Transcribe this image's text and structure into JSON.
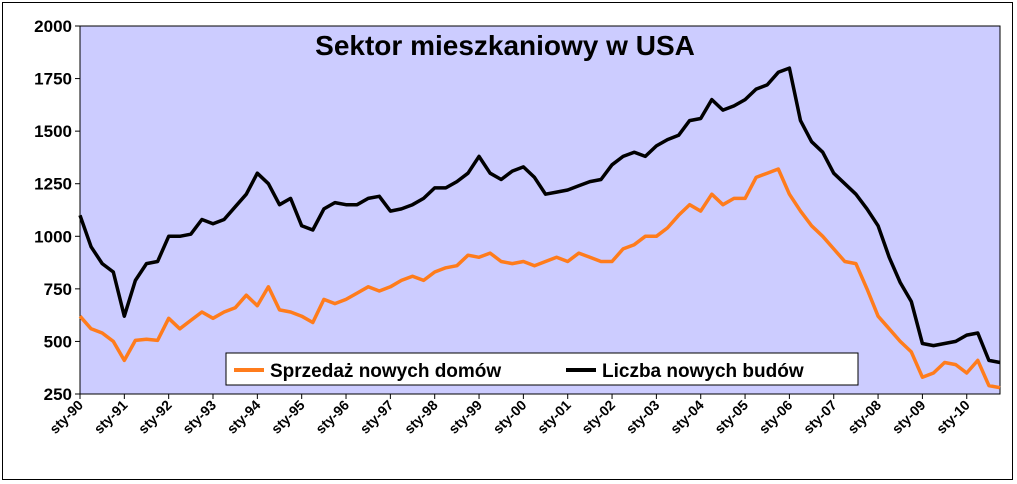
{
  "chart_data": {
    "type": "line",
    "title": "Sektor mieszkaniowy w USA",
    "xlabel": "",
    "ylabel": "",
    "ylim": [
      250,
      2000
    ],
    "y_ticks": [
      250,
      500,
      750,
      1000,
      1250,
      1500,
      1750,
      2000
    ],
    "x_ticks": [
      "sty-90",
      "sty-91",
      "sty-92",
      "sty-93",
      "sty-94",
      "sty-95",
      "sty-96",
      "sty-97",
      "sty-98",
      "sty-99",
      "sty-00",
      "sty-01",
      "sty-02",
      "sty-03",
      "sty-04",
      "sty-05",
      "sty-06",
      "sty-07",
      "sty-08",
      "sty-09",
      "sty-10"
    ],
    "x_start": "1990-01",
    "x_end": "2010-10",
    "legend_position": "bottom-right",
    "plot_background": "#ccccff",
    "series": [
      {
        "name": "Sprzedaż nowych domów",
        "color": "#ff7c1c",
        "values": [
          {
            "x": "1990-01",
            "y": 620
          },
          {
            "x": "1990-04",
            "y": 560
          },
          {
            "x": "1990-07",
            "y": 540
          },
          {
            "x": "1990-10",
            "y": 500
          },
          {
            "x": "1991-01",
            "y": 410
          },
          {
            "x": "1991-04",
            "y": 505
          },
          {
            "x": "1991-07",
            "y": 510
          },
          {
            "x": "1991-10",
            "y": 505
          },
          {
            "x": "1992-01",
            "y": 610
          },
          {
            "x": "1992-04",
            "y": 560
          },
          {
            "x": "1992-07",
            "y": 600
          },
          {
            "x": "1992-10",
            "y": 640
          },
          {
            "x": "1993-01",
            "y": 610
          },
          {
            "x": "1993-04",
            "y": 640
          },
          {
            "x": "1993-07",
            "y": 660
          },
          {
            "x": "1993-10",
            "y": 720
          },
          {
            "x": "1994-01",
            "y": 670
          },
          {
            "x": "1994-04",
            "y": 760
          },
          {
            "x": "1994-07",
            "y": 650
          },
          {
            "x": "1994-10",
            "y": 640
          },
          {
            "x": "1995-01",
            "y": 620
          },
          {
            "x": "1995-04",
            "y": 590
          },
          {
            "x": "1995-07",
            "y": 700
          },
          {
            "x": "1995-10",
            "y": 680
          },
          {
            "x": "1996-01",
            "y": 700
          },
          {
            "x": "1996-04",
            "y": 730
          },
          {
            "x": "1996-07",
            "y": 760
          },
          {
            "x": "1996-10",
            "y": 740
          },
          {
            "x": "1997-01",
            "y": 760
          },
          {
            "x": "1997-04",
            "y": 790
          },
          {
            "x": "1997-07",
            "y": 810
          },
          {
            "x": "1997-10",
            "y": 790
          },
          {
            "x": "1998-01",
            "y": 830
          },
          {
            "x": "1998-04",
            "y": 850
          },
          {
            "x": "1998-07",
            "y": 860
          },
          {
            "x": "1998-10",
            "y": 910
          },
          {
            "x": "1999-01",
            "y": 900
          },
          {
            "x": "1999-04",
            "y": 920
          },
          {
            "x": "1999-07",
            "y": 880
          },
          {
            "x": "1999-10",
            "y": 870
          },
          {
            "x": "2000-01",
            "y": 880
          },
          {
            "x": "2000-04",
            "y": 860
          },
          {
            "x": "2000-07",
            "y": 880
          },
          {
            "x": "2000-10",
            "y": 900
          },
          {
            "x": "2001-01",
            "y": 880
          },
          {
            "x": "2001-04",
            "y": 920
          },
          {
            "x": "2001-07",
            "y": 900
          },
          {
            "x": "2001-10",
            "y": 880
          },
          {
            "x": "2002-01",
            "y": 880
          },
          {
            "x": "2002-04",
            "y": 940
          },
          {
            "x": "2002-07",
            "y": 960
          },
          {
            "x": "2002-10",
            "y": 1000
          },
          {
            "x": "2003-01",
            "y": 1000
          },
          {
            "x": "2003-04",
            "y": 1040
          },
          {
            "x": "2003-07",
            "y": 1100
          },
          {
            "x": "2003-10",
            "y": 1150
          },
          {
            "x": "2004-01",
            "y": 1120
          },
          {
            "x": "2004-04",
            "y": 1200
          },
          {
            "x": "2004-07",
            "y": 1150
          },
          {
            "x": "2004-10",
            "y": 1180
          },
          {
            "x": "2005-01",
            "y": 1180
          },
          {
            "x": "2005-04",
            "y": 1280
          },
          {
            "x": "2005-07",
            "y": 1300
          },
          {
            "x": "2005-10",
            "y": 1320
          },
          {
            "x": "2006-01",
            "y": 1200
          },
          {
            "x": "2006-04",
            "y": 1120
          },
          {
            "x": "2006-07",
            "y": 1050
          },
          {
            "x": "2006-10",
            "y": 1000
          },
          {
            "x": "2007-01",
            "y": 940
          },
          {
            "x": "2007-04",
            "y": 880
          },
          {
            "x": "2007-07",
            "y": 870
          },
          {
            "x": "2007-10",
            "y": 750
          },
          {
            "x": "2008-01",
            "y": 620
          },
          {
            "x": "2008-04",
            "y": 560
          },
          {
            "x": "2008-07",
            "y": 500
          },
          {
            "x": "2008-10",
            "y": 450
          },
          {
            "x": "2009-01",
            "y": 330
          },
          {
            "x": "2009-04",
            "y": 350
          },
          {
            "x": "2009-07",
            "y": 400
          },
          {
            "x": "2009-10",
            "y": 390
          },
          {
            "x": "2010-01",
            "y": 350
          },
          {
            "x": "2010-04",
            "y": 410
          },
          {
            "x": "2010-07",
            "y": 290
          },
          {
            "x": "2010-10",
            "y": 280
          }
        ]
      },
      {
        "name": "Liczba nowych budów",
        "color": "#000000",
        "values": [
          {
            "x": "1990-01",
            "y": 1100
          },
          {
            "x": "1990-04",
            "y": 950
          },
          {
            "x": "1990-07",
            "y": 870
          },
          {
            "x": "1990-10",
            "y": 830
          },
          {
            "x": "1991-01",
            "y": 620
          },
          {
            "x": "1991-04",
            "y": 790
          },
          {
            "x": "1991-07",
            "y": 870
          },
          {
            "x": "1991-10",
            "y": 880
          },
          {
            "x": "1992-01",
            "y": 1000
          },
          {
            "x": "1992-04",
            "y": 1000
          },
          {
            "x": "1992-07",
            "y": 1010
          },
          {
            "x": "1992-10",
            "y": 1080
          },
          {
            "x": "1993-01",
            "y": 1060
          },
          {
            "x": "1993-04",
            "y": 1080
          },
          {
            "x": "1993-07",
            "y": 1140
          },
          {
            "x": "1993-10",
            "y": 1200
          },
          {
            "x": "1994-01",
            "y": 1300
          },
          {
            "x": "1994-04",
            "y": 1250
          },
          {
            "x": "1994-07",
            "y": 1150
          },
          {
            "x": "1994-10",
            "y": 1180
          },
          {
            "x": "1995-01",
            "y": 1050
          },
          {
            "x": "1995-04",
            "y": 1030
          },
          {
            "x": "1995-07",
            "y": 1130
          },
          {
            "x": "1995-10",
            "y": 1160
          },
          {
            "x": "1996-01",
            "y": 1150
          },
          {
            "x": "1996-04",
            "y": 1150
          },
          {
            "x": "1996-07",
            "y": 1180
          },
          {
            "x": "1996-10",
            "y": 1190
          },
          {
            "x": "1997-01",
            "y": 1120
          },
          {
            "x": "1997-04",
            "y": 1130
          },
          {
            "x": "1997-07",
            "y": 1150
          },
          {
            "x": "1997-10",
            "y": 1180
          },
          {
            "x": "1998-01",
            "y": 1230
          },
          {
            "x": "1998-04",
            "y": 1230
          },
          {
            "x": "1998-07",
            "y": 1260
          },
          {
            "x": "1998-10",
            "y": 1300
          },
          {
            "x": "1999-01",
            "y": 1380
          },
          {
            "x": "1999-04",
            "y": 1300
          },
          {
            "x": "1999-07",
            "y": 1270
          },
          {
            "x": "1999-10",
            "y": 1310
          },
          {
            "x": "2000-01",
            "y": 1330
          },
          {
            "x": "2000-04",
            "y": 1280
          },
          {
            "x": "2000-07",
            "y": 1200
          },
          {
            "x": "2000-10",
            "y": 1210
          },
          {
            "x": "2001-01",
            "y": 1220
          },
          {
            "x": "2001-04",
            "y": 1240
          },
          {
            "x": "2001-07",
            "y": 1260
          },
          {
            "x": "2001-10",
            "y": 1270
          },
          {
            "x": "2002-01",
            "y": 1340
          },
          {
            "x": "2002-04",
            "y": 1380
          },
          {
            "x": "2002-07",
            "y": 1400
          },
          {
            "x": "2002-10",
            "y": 1380
          },
          {
            "x": "2003-01",
            "y": 1430
          },
          {
            "x": "2003-04",
            "y": 1460
          },
          {
            "x": "2003-07",
            "y": 1480
          },
          {
            "x": "2003-10",
            "y": 1550
          },
          {
            "x": "2004-01",
            "y": 1560
          },
          {
            "x": "2004-04",
            "y": 1650
          },
          {
            "x": "2004-07",
            "y": 1600
          },
          {
            "x": "2004-10",
            "y": 1620
          },
          {
            "x": "2005-01",
            "y": 1650
          },
          {
            "x": "2005-04",
            "y": 1700
          },
          {
            "x": "2005-07",
            "y": 1720
          },
          {
            "x": "2005-10",
            "y": 1780
          },
          {
            "x": "2006-01",
            "y": 1800
          },
          {
            "x": "2006-04",
            "y": 1550
          },
          {
            "x": "2006-07",
            "y": 1450
          },
          {
            "x": "2006-10",
            "y": 1400
          },
          {
            "x": "2007-01",
            "y": 1300
          },
          {
            "x": "2007-04",
            "y": 1250
          },
          {
            "x": "2007-07",
            "y": 1200
          },
          {
            "x": "2007-10",
            "y": 1130
          },
          {
            "x": "2008-01",
            "y": 1050
          },
          {
            "x": "2008-04",
            "y": 900
          },
          {
            "x": "2008-07",
            "y": 780
          },
          {
            "x": "2008-10",
            "y": 690
          },
          {
            "x": "2009-01",
            "y": 490
          },
          {
            "x": "2009-04",
            "y": 480
          },
          {
            "x": "2009-07",
            "y": 490
          },
          {
            "x": "2009-10",
            "y": 500
          },
          {
            "x": "2010-01",
            "y": 530
          },
          {
            "x": "2010-04",
            "y": 540
          },
          {
            "x": "2010-07",
            "y": 410
          },
          {
            "x": "2010-10",
            "y": 400
          }
        ]
      }
    ]
  }
}
